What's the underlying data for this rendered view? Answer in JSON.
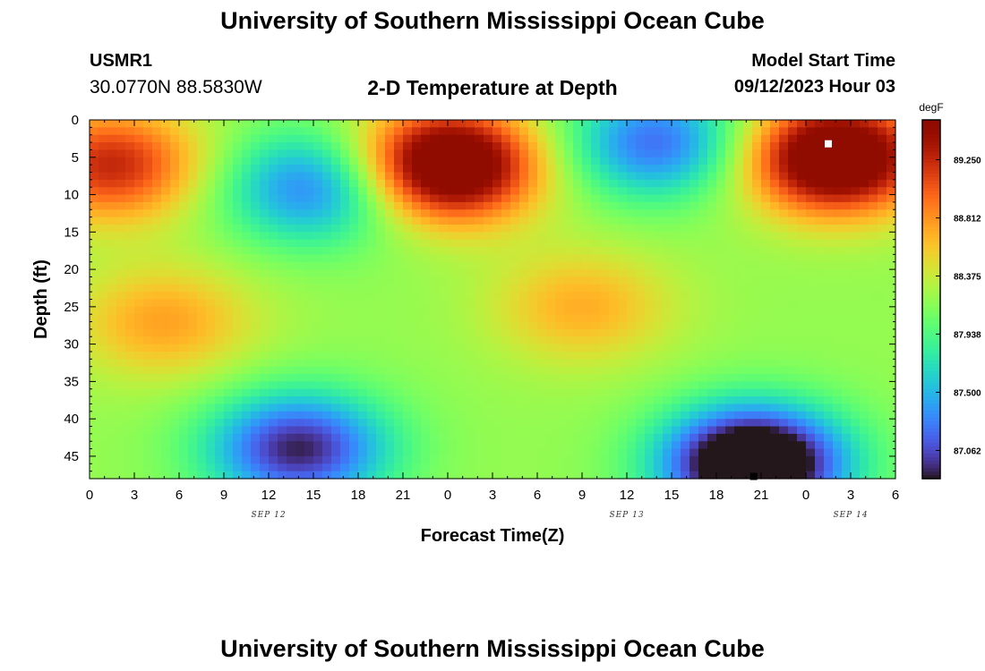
{
  "header": {
    "title": "University of Southern Mississippi Ocean Cube",
    "station_id": "USMR1",
    "location": "30.0770N  88.5830W",
    "plot_title": "2-D Temperature at Depth",
    "start_label": "Model Start Time",
    "start_value": "09/12/2023 Hour 03"
  },
  "footer": {
    "title": "University of Southern Mississippi Ocean Cube"
  },
  "chart_data": {
    "type": "heatmap",
    "title": "2-D Temperature at Depth",
    "xlabel": "Forecast Time(Z)",
    "ylabel": "Depth (ft)",
    "x_range_hours": [
      0,
      54
    ],
    "x_tick_labels": [
      "0",
      "3",
      "6",
      "9",
      "12",
      "15",
      "18",
      "21",
      "0",
      "3",
      "6",
      "9",
      "12",
      "15",
      "18",
      "21",
      "0",
      "3",
      "6"
    ],
    "date_labels": [
      {
        "hour": 12,
        "label": "SEP 12"
      },
      {
        "hour": 36,
        "label": "SEP 13"
      },
      {
        "hour": 51,
        "label": "SEP 14"
      }
    ],
    "y_range": [
      0,
      48
    ],
    "y_ticks": [
      0,
      5,
      10,
      15,
      20,
      25,
      30,
      35,
      40,
      45
    ],
    "y_inverted": true,
    "colorbar": {
      "unit": "degF",
      "min": 86.85,
      "max": 89.55,
      "ticks": [
        "89.250",
        "88.812",
        "88.375",
        "87.938",
        "87.500",
        "87.062"
      ],
      "colormap": "turbo"
    },
    "markers": [
      {
        "name": "max",
        "hour": 49.5,
        "depth": 3.2,
        "color": "#ffffff"
      },
      {
        "name": "min",
        "hour": 44.5,
        "depth": 47.7,
        "color": "#000000"
      }
    ],
    "temperature_anomalies_degF": [
      {
        "hour": 1.5,
        "depth": 6,
        "value": 1.05
      },
      {
        "hour": 15,
        "depth": 9,
        "value": -0.95
      },
      {
        "hour": 24,
        "depth": 6,
        "value": 1.75
      },
      {
        "hour": 38,
        "depth": 3,
        "value": -1.0
      },
      {
        "hour": 50,
        "depth": 5,
        "value": 1.75
      },
      {
        "hour": 5,
        "depth": 27,
        "value": 0.55
      },
      {
        "hour": 33,
        "depth": 25,
        "value": 0.5
      },
      {
        "hour": 14,
        "depth": 44,
        "value": -1.3
      },
      {
        "hour": 44.5,
        "depth": 46,
        "value": -2.0
      }
    ],
    "base_temperature_degF": 88.2
  }
}
